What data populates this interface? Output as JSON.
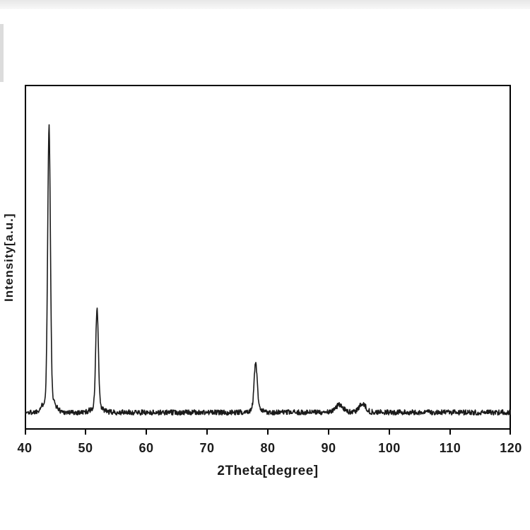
{
  "figure": {
    "background": "#ffffff"
  },
  "chart_data": {
    "type": "line",
    "title": "",
    "xlabel": "2Theta[degree]",
    "ylabel": "Intensity[a.u.]",
    "xlim": [
      40,
      120
    ],
    "ylim": [
      0,
      120
    ],
    "x_ticks": [
      "40",
      "50",
      "60",
      "70",
      "80",
      "90",
      "100",
      "110",
      "120"
    ],
    "y_ticks": [],
    "grid": false,
    "legend": "none",
    "line_color": "#1a1a1a",
    "axis_color": "#000000",
    "baseline_level": 6,
    "noise_amplitude": 0.9,
    "peaks": [
      {
        "two_theta": 44.0,
        "height": 94,
        "sigma": 0.22
      },
      {
        "two_theta": 51.9,
        "height": 34,
        "sigma": 0.22
      },
      {
        "two_theta": 78.0,
        "height": 16,
        "sigma": 0.26
      },
      {
        "two_theta": 91.8,
        "height": 2.6,
        "sigma": 0.55
      },
      {
        "two_theta": 95.6,
        "height": 3.0,
        "sigma": 0.5
      }
    ]
  }
}
